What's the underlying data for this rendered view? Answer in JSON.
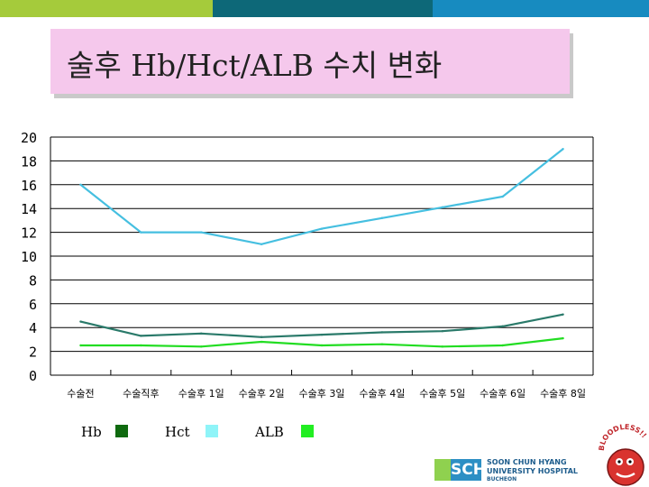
{
  "header": {
    "title": "술후 Hb/Hct/ALB 수치 변화",
    "bar_colors": [
      "#a5cb3b",
      "#0d6878",
      "#178bc0"
    ]
  },
  "chart_data": {
    "type": "line",
    "title": "술후 Hb/Hct/ALB 수치 변화",
    "xlabel": "",
    "ylabel": "",
    "categories": [
      "수술전",
      "수술직후",
      "수술후 1일",
      "수술후 2일",
      "수술후 3일",
      "수술후 4일",
      "수술후 5일",
      "수술후 6일",
      "수술후 8일"
    ],
    "ylim": [
      0,
      20
    ],
    "yticks": [
      "0",
      "2",
      "4",
      "6",
      "8",
      "10",
      "12",
      "14",
      "16",
      "18",
      "20"
    ],
    "grid": true,
    "legend": "bottom-left",
    "series": [
      {
        "name": "Hb",
        "color": "#2a7a6a",
        "values": [
          4.5,
          3.3,
          3.5,
          3.2,
          3.4,
          3.6,
          3.7,
          4.1,
          5.1
        ]
      },
      {
        "name": "Hct",
        "color": "#45bfe0",
        "values": [
          16,
          12,
          12,
          11,
          12.3,
          13.2,
          14.1,
          15,
          19
        ]
      },
      {
        "name": "ALB",
        "color": "#22dd22",
        "values": [
          2.5,
          2.5,
          2.4,
          2.8,
          2.5,
          2.6,
          2.4,
          2.5,
          3.1
        ]
      }
    ],
    "legend_swatches": [
      "#0f6a0f",
      "#8ff4f8",
      "#22ee22"
    ]
  },
  "logo": {
    "mark": "SCH",
    "line1": "SOON CHUN HYANG",
    "line2": "UNIVERSITY HOSPITAL",
    "line3": "BUCHEON",
    "mascot_text": "BLOODLESS!!"
  }
}
